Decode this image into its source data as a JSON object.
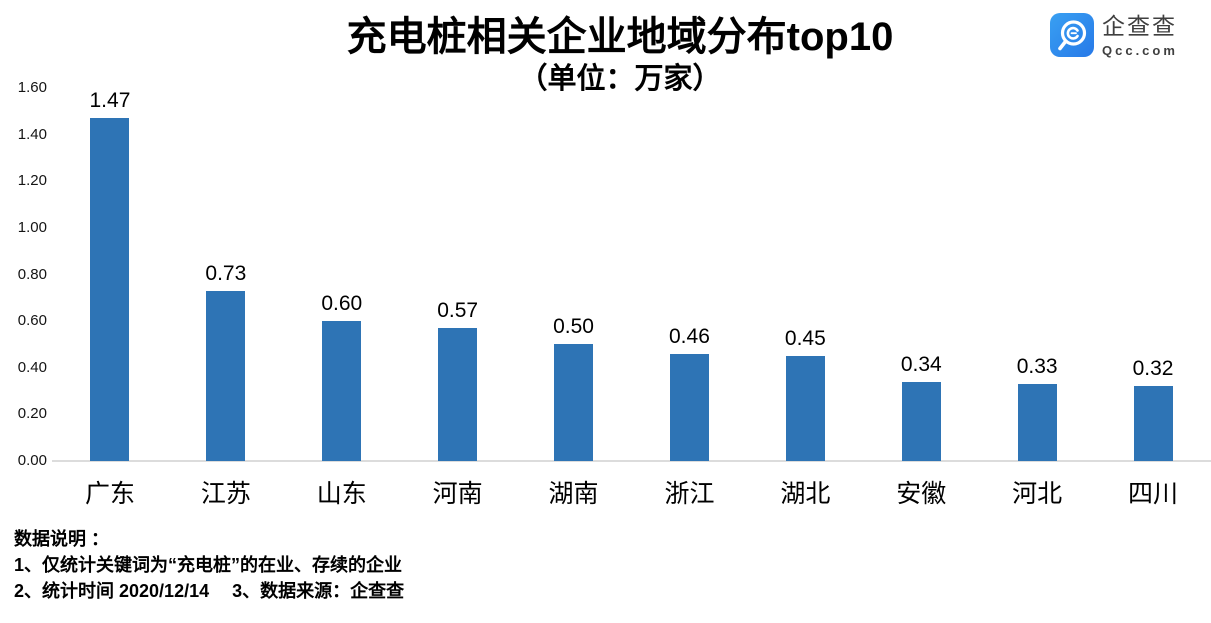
{
  "header": {
    "title": "充电桩相关企业地域分布top10",
    "subtitle": "（单位：万家）"
  },
  "logo": {
    "brand": "企查查",
    "domain": "Qcc.com",
    "icon_color": "#2C85EC"
  },
  "chart_data": {
    "type": "bar",
    "title": "充电桩相关企业地域分布top10",
    "subtitle": "（单位：万家）",
    "unit": "万家",
    "categories": [
      "广东",
      "江苏",
      "山东",
      "河南",
      "湖南",
      "浙江",
      "湖北",
      "安徽",
      "河北",
      "四川"
    ],
    "values": [
      1.47,
      0.73,
      0.6,
      0.57,
      0.5,
      0.46,
      0.45,
      0.34,
      0.33,
      0.32
    ],
    "value_labels": [
      "1.47",
      "0.73",
      "0.60",
      "0.57",
      "0.50",
      "0.46",
      "0.45",
      "0.34",
      "0.33",
      "0.32"
    ],
    "yticks": [
      "1.60",
      "1.40",
      "1.20",
      "1.00",
      "0.80",
      "0.60",
      "0.40",
      "0.20",
      "0.00"
    ],
    "ylim": [
      0,
      1.6
    ],
    "ytick_step": 0.2,
    "grid": false,
    "legend_position": "none",
    "bar_color": "#2E74B5",
    "axis_line_color": "#DCDCDC"
  },
  "notes": {
    "heading": "数据说明 ：",
    "lines": [
      "1、仅统计关键词为“充电桩”的在业、存续的企业",
      "2、统计时间 2020/12/14　 3、数据来源：企查查"
    ]
  }
}
